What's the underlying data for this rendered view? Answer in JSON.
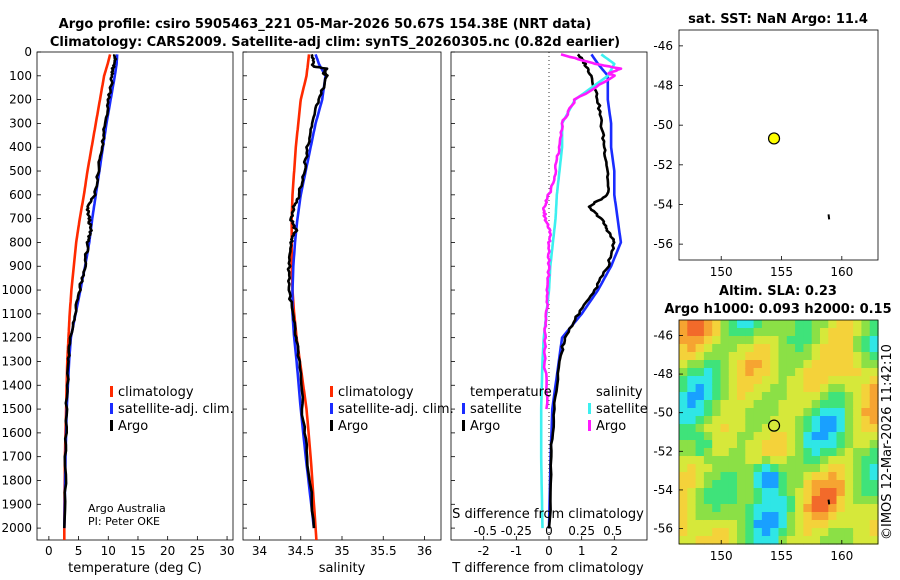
{
  "colors": {
    "climatology": "#ff2a00",
    "satellite": "#1a2cff",
    "argo": "#000000",
    "sat_cyan": "#3cf0f0",
    "argo_magenta": "#ff1aff",
    "dot": "#ffff00"
  },
  "title": {
    "line1": "Argo profile: csiro 5905463_221 05-Mar-2026 50.67S 154.38E (NRT data)",
    "line2": "Climatology: CARS2009. Satellite-adj clim: synTS_20260305.nc (0.82d earlier)"
  },
  "credit": {
    "org": "Argo Australia",
    "pi": "PI: Peter OKE"
  },
  "imos_stamp": "©IMOS 12-Mar-2026 11:42:10",
  "chart_data": [
    {
      "id": "temperature",
      "type": "line",
      "xlabel": "temperature (deg C)",
      "ylabel": "",
      "xlim": [
        -2,
        31
      ],
      "ylim": [
        2050,
        0
      ],
      "xticks": [
        0,
        5,
        10,
        15,
        20,
        25,
        30
      ],
      "xtick_labels": [
        "0",
        "5",
        "10",
        "15",
        "20",
        "25",
        "30"
      ],
      "yticks": [
        0,
        100,
        200,
        300,
        400,
        500,
        600,
        700,
        800,
        900,
        1000,
        1100,
        1200,
        1300,
        1400,
        1500,
        1600,
        1700,
        1800,
        1900,
        2000
      ],
      "ytick_labels": [
        "0",
        "100",
        "200",
        "300",
        "400",
        "500",
        "600",
        "700",
        "800",
        "900",
        "1000",
        "1100",
        "1200",
        "1300",
        "1400",
        "1500",
        "1600",
        "1700",
        "1800",
        "1900",
        "2000"
      ],
      "legend": [
        "climatology",
        "satellite-adj. clim.",
        "Argo"
      ],
      "series": [
        {
          "name": "climatology",
          "color": "#ff2a00",
          "pressure": [
            10,
            50,
            100,
            200,
            300,
            400,
            500,
            600,
            700,
            800,
            900,
            1000,
            1100,
            1200,
            1300,
            1500,
            1700,
            2000,
            2050
          ],
          "values": [
            10.3,
            9.9,
            9.3,
            8.6,
            7.9,
            7.2,
            6.5,
            5.9,
            5.2,
            4.6,
            4.2,
            3.8,
            3.5,
            3.3,
            3.1,
            2.9,
            2.7,
            2.6,
            2.6
          ]
        },
        {
          "name": "satellite-adj. clim.",
          "color": "#1a2cff",
          "pressure": [
            10,
            50,
            100,
            200,
            300,
            400,
            500,
            600,
            700,
            800,
            900,
            1000,
            1100,
            1200,
            1300,
            1500,
            1700,
            2000
          ],
          "values": [
            11.5,
            11.4,
            11.1,
            10.4,
            9.7,
            9.1,
            8.5,
            7.9,
            7.3,
            6.8,
            6.1,
            5.3,
            4.5,
            3.7,
            3.4,
            3.0,
            2.8,
            2.6
          ]
        },
        {
          "name": "Argo",
          "color": "#000000",
          "pressure": [
            10,
            50,
            80,
            120,
            200,
            300,
            400,
            500,
            600,
            650,
            700,
            750,
            800,
            900,
            1000,
            1100,
            1200,
            1300,
            1500,
            1700,
            2000
          ],
          "values": [
            11.2,
            11.0,
            10.6,
            10.6,
            10.1,
            9.5,
            8.9,
            8.3,
            7.7,
            6.4,
            6.8,
            7.0,
            6.6,
            6.0,
            5.2,
            4.4,
            3.7,
            3.3,
            3.0,
            2.8,
            2.6
          ]
        }
      ]
    },
    {
      "id": "salinity",
      "type": "line",
      "xlabel": "salinity",
      "xlim": [
        33.8,
        36.2
      ],
      "ylim": [
        2050,
        0
      ],
      "xticks": [
        34,
        34.5,
        35,
        35.5,
        36
      ],
      "xtick_labels": [
        "34",
        "34.5",
        "35",
        "35.5",
        "36"
      ],
      "legend": [
        "climatology",
        "satellite-adj. clim.",
        "Argo"
      ],
      "series": [
        {
          "name": "climatology",
          "color": "#ff2a00",
          "pressure": [
            10,
            100,
            200,
            300,
            400,
            500,
            600,
            700,
            800,
            900,
            1000,
            1100,
            1200,
            1300,
            1400,
            1500,
            1700,
            2000,
            2050
          ],
          "values": [
            34.6,
            34.57,
            34.5,
            34.47,
            34.44,
            34.42,
            34.4,
            34.39,
            34.39,
            34.39,
            34.4,
            34.42,
            34.45,
            34.49,
            34.53,
            34.57,
            34.62,
            34.68,
            34.69
          ]
        },
        {
          "name": "satellite-adj. clim.",
          "color": "#1a2cff",
          "pressure": [
            10,
            50,
            100,
            200,
            300,
            400,
            500,
            600,
            700,
            800,
            900,
            1000,
            1100,
            1200,
            1300,
            1500,
            1700,
            2000
          ],
          "values": [
            34.68,
            34.72,
            34.8,
            34.76,
            34.68,
            34.62,
            34.56,
            34.5,
            34.46,
            34.43,
            34.41,
            34.4,
            34.4,
            34.42,
            34.45,
            34.5,
            34.56,
            34.66
          ]
        },
        {
          "name": "Argo",
          "color": "#000000",
          "pressure": [
            10,
            60,
            70,
            90,
            100,
            200,
            300,
            400,
            500,
            600,
            650,
            700,
            750,
            800,
            900,
            1000,
            1100,
            1200,
            1300,
            1500,
            1700,
            2000
          ],
          "values": [
            34.64,
            34.65,
            34.82,
            34.78,
            34.82,
            34.72,
            34.64,
            34.58,
            34.54,
            34.48,
            34.42,
            34.38,
            34.44,
            34.38,
            34.36,
            34.36,
            34.4,
            34.44,
            34.48,
            34.52,
            34.58,
            34.66
          ]
        }
      ]
    },
    {
      "id": "differences",
      "type": "line",
      "xlabel": "T difference from climatology",
      "top_xlabel": "S difference from climatology",
      "xlim": [
        -3,
        3
      ],
      "ylim": [
        2050,
        0
      ],
      "xticks": [
        -2,
        -1,
        0,
        1,
        2
      ],
      "xtick_labels": [
        "-2",
        "-1",
        "0",
        "1",
        "2"
      ],
      "top_xtick_labels": [
        "-0.5",
        "-0.25",
        "0",
        "0.25",
        "0.5"
      ],
      "legend_left_title": "temperature",
      "legend_right_title": "salinity",
      "legend": [
        "satellite",
        "Argo",
        "satellite",
        "Argo"
      ],
      "series": [
        {
          "name": "temperature satellite",
          "color": "#1a2cff",
          "pressure": [
            10,
            50,
            100,
            200,
            300,
            400,
            500,
            600,
            700,
            800,
            900,
            1000,
            1100,
            1200,
            1300,
            1500,
            1700,
            2000
          ],
          "values": [
            1.3,
            1.5,
            1.8,
            1.8,
            1.9,
            1.9,
            2.0,
            2.0,
            2.1,
            2.2,
            1.9,
            1.5,
            1.0,
            0.4,
            0.3,
            0.1,
            0.05,
            0.0
          ]
        },
        {
          "name": "temperature Argo",
          "color": "#000000",
          "pressure": [
            10,
            50,
            100,
            200,
            300,
            400,
            500,
            600,
            650,
            700,
            750,
            800,
            900,
            1000,
            1100,
            1200,
            1300,
            1500,
            1700,
            2000
          ],
          "values": [
            0.9,
            1.1,
            1.3,
            1.5,
            1.6,
            1.7,
            1.8,
            1.8,
            1.2,
            1.6,
            1.8,
            2.0,
            1.8,
            1.4,
            0.9,
            0.5,
            0.3,
            0.15,
            0.05,
            0.0
          ]
        },
        {
          "name": "salinity satellite",
          "color": "#3cf0f0",
          "pressure": [
            10,
            50,
            100,
            200,
            300,
            400,
            500,
            600,
            700,
            800,
            900,
            1000,
            1100,
            1200,
            1300,
            1500,
            1700,
            2000
          ],
          "values": [
            0.4,
            0.5,
            0.45,
            0.2,
            0.1,
            0.1,
            0.08,
            0.06,
            0.05,
            0.03,
            0.01,
            0.0,
            -0.02,
            -0.04,
            -0.05,
            -0.06,
            -0.06,
            -0.05
          ]
        },
        {
          "name": "salinity Argo",
          "color": "#ff1aff",
          "pressure": [
            10,
            50,
            70,
            90,
            100,
            200,
            300,
            400,
            500,
            600,
            650,
            700,
            750,
            800,
            900,
            1000,
            1100,
            1200,
            1300,
            1500
          ],
          "values": [
            0.1,
            0.35,
            0.55,
            0.45,
            0.5,
            0.2,
            0.1,
            0.08,
            0.05,
            0.0,
            -0.04,
            -0.03,
            0.01,
            0.0,
            0.0,
            -0.01,
            -0.02,
            -0.03,
            -0.03,
            -0.02
          ]
        }
      ]
    },
    {
      "id": "sst_map",
      "type": "scatter",
      "title": "sat. SST: NaN Argo: 11.4",
      "xlim": [
        146.5,
        163
      ],
      "ylim": [
        -56.8,
        -45.2
      ],
      "xticks": [
        150,
        155,
        160
      ],
      "xtick_labels": [
        "150",
        "155",
        "160"
      ],
      "yticks": [
        -46,
        -48,
        -50,
        -52,
        -54,
        -56
      ],
      "ytick_labels": [
        "-46",
        "-48",
        "-50",
        "-52",
        "-54",
        "-56"
      ],
      "points": [
        {
          "lon": 154.38,
          "lat": -50.67
        }
      ]
    },
    {
      "id": "sla_map",
      "type": "heatmap",
      "title_line1": "Altim. SLA: 0.23",
      "title_line2": "Argo h1000: 0.093 h2000: 0.15",
      "xlim": [
        146.5,
        163
      ],
      "ylim": [
        -56.8,
        -45.2
      ],
      "xticks": [
        150,
        155,
        160
      ],
      "xtick_labels": [
        "150",
        "155",
        "160"
      ],
      "yticks": [
        -46,
        -48,
        -50,
        -52,
        -54,
        -56
      ],
      "ytick_labels": [
        "-46",
        "-48",
        "-50",
        "-52",
        "-54",
        "-56"
      ],
      "points": [
        {
          "lon": 154.38,
          "lat": -50.67
        }
      ]
    }
  ]
}
